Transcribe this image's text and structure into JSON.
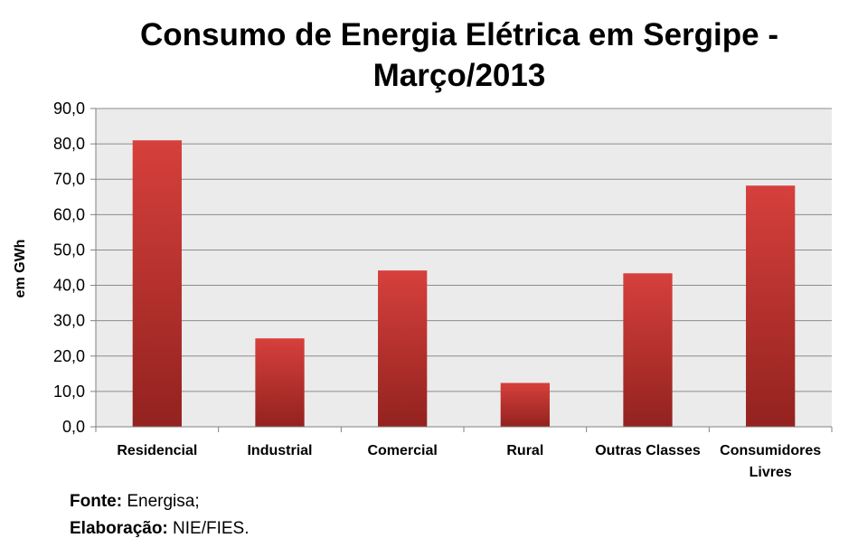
{
  "chart_data": {
    "type": "bar",
    "title_lines": [
      "Consumo de Energia Elétrica em Sergipe -",
      "Março/2013"
    ],
    "ylabel": "em GWh",
    "xlabel": "",
    "ylim": [
      0,
      90
    ],
    "ytick_step": 10,
    "ytick_labels": [
      "0,0",
      "10,0",
      "20,0",
      "30,0",
      "40,0",
      "50,0",
      "60,0",
      "70,0",
      "80,0",
      "90,0"
    ],
    "categories": [
      [
        "Residencial"
      ],
      [
        "Industrial"
      ],
      [
        "Comercial"
      ],
      [
        "Rural"
      ],
      [
        "Outras Classes"
      ],
      [
        "Consumidores",
        "Livres"
      ]
    ],
    "values": [
      81.0,
      25.0,
      44.2,
      12.4,
      43.4,
      68.2
    ],
    "grid": true,
    "legend": "none"
  },
  "colors": {
    "plot_bg": "#ebebeb",
    "bar_light": "#d6403c",
    "bar_dark": "#93221f",
    "grid": "#8c8c8c"
  },
  "footer": {
    "source_label": "Fonte:",
    "source_value": "Energisa;",
    "author_label": "Elaboração:",
    "author_value": "NIE/FIES."
  }
}
